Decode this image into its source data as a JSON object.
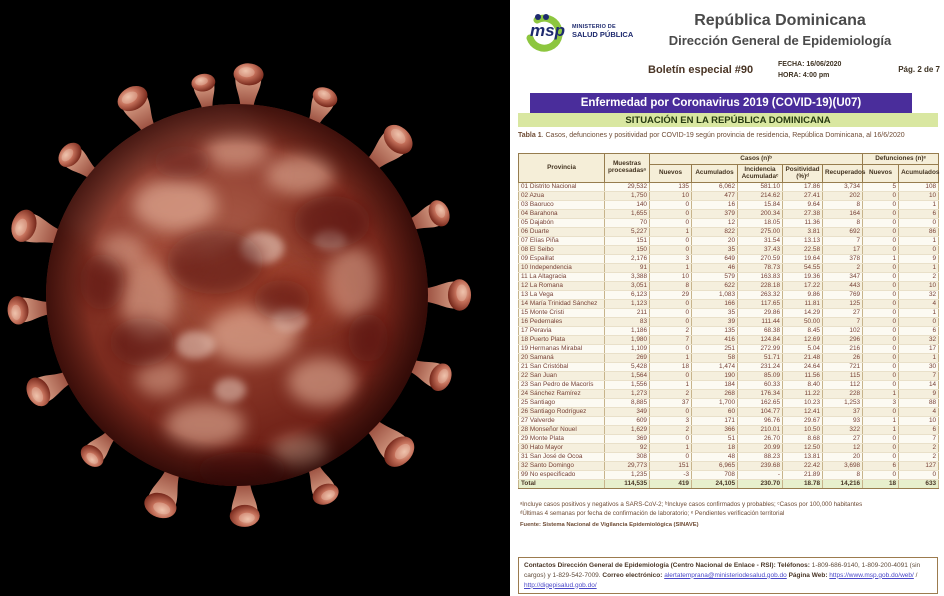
{
  "left_panel": {
    "description": "3D illustration of a SARS-CoV-2 coronavirus particle, mottled red and pink, on black background",
    "background_color": "#000000",
    "virus_body_color": "#8e3a2a",
    "spike_cap_color": "#c4705a"
  },
  "document": {
    "header": {
      "logo_acronym": "msp",
      "logo_line1": "MINISTERIO DE",
      "logo_line2": "SALUD PÚBLICA",
      "title": "República Dominicana",
      "subtitle": "Dirección General de Epidemiología",
      "bulletin": "Boletín especial #90",
      "fecha": "FECHA: 16/06/2020",
      "hora": "HORA: 4:00 pm",
      "page": "Pág. 2 de 7"
    },
    "banners": {
      "purple": "Enfermedad por Coronavirus 2019 (COVID-19)(U07)",
      "green": "SITUACIÓN EN LA REPÚBLICA DOMINICANA"
    },
    "table": {
      "caption_bold": "Tabla 1",
      "caption_rest": ". Casos, defunciones y positividad por COVID-19 según provincia de residencia, República Dominicana, al 16/6/2020",
      "group_provincia": "Provincia",
      "group_muestras": "Muestras procesadasᵃ",
      "group_casos": "Casos (n)ᵇ",
      "group_defunciones": "Defunciones (n)ᵉ",
      "sub_headers": [
        "Nuevos",
        "Acumulados",
        "Incidencia Acumuladaᶜ",
        "Positividad (%)ᵈ",
        "Recuperados",
        "Nuevos",
        "Acumulados"
      ],
      "rows": [
        [
          "01 Distrito Nacional",
          "29,532",
          "135",
          "6,062",
          "581.10",
          "17.86",
          "3,734",
          "5",
          "108"
        ],
        [
          "02 Azua",
          "1,750",
          "10",
          "477",
          "214.62",
          "27.41",
          "202",
          "0",
          "10"
        ],
        [
          "03 Baoruco",
          "140",
          "0",
          "16",
          "15.84",
          "9.64",
          "8",
          "0",
          "1"
        ],
        [
          "04 Barahona",
          "1,655",
          "0",
          "379",
          "200.34",
          "27.38",
          "164",
          "0",
          "6"
        ],
        [
          "05 Dajabón",
          "70",
          "0",
          "12",
          "18.05",
          "11.36",
          "8",
          "0",
          "0"
        ],
        [
          "06 Duarte",
          "5,227",
          "1",
          "822",
          "275.00",
          "3.81",
          "692",
          "0",
          "86"
        ],
        [
          "07 Elías Piña",
          "151",
          "0",
          "20",
          "31.54",
          "13.13",
          "7",
          "0",
          "1"
        ],
        [
          "08 El Seibo",
          "150",
          "0",
          "35",
          "37.43",
          "22.58",
          "17",
          "0",
          "0"
        ],
        [
          "09 Espaillat",
          "2,176",
          "3",
          "649",
          "270.59",
          "19.64",
          "378",
          "1",
          "9"
        ],
        [
          "10 Independencia",
          "91",
          "1",
          "46",
          "78.73",
          "54.55",
          "2",
          "0",
          "1"
        ],
        [
          "11 La Altagracia",
          "3,388",
          "10",
          "579",
          "163.83",
          "19.36",
          "347",
          "0",
          "2"
        ],
        [
          "12 La Romana",
          "3,051",
          "8",
          "622",
          "228.18",
          "17.22",
          "443",
          "0",
          "10"
        ],
        [
          "13 La Vega",
          "6,123",
          "29",
          "1,083",
          "263.32",
          "9.86",
          "769",
          "0",
          "32"
        ],
        [
          "14 María Trinidad Sánchez",
          "1,123",
          "0",
          "166",
          "117.65",
          "11.81",
          "125",
          "0",
          "4"
        ],
        [
          "15 Monte Cristi",
          "211",
          "0",
          "35",
          "29.86",
          "14.29",
          "27",
          "0",
          "1"
        ],
        [
          "16 Pedernales",
          "83",
          "0",
          "39",
          "111.44",
          "50.00",
          "7",
          "0",
          "0"
        ],
        [
          "17 Peravia",
          "1,186",
          "2",
          "135",
          "68.38",
          "8.45",
          "102",
          "0",
          "6"
        ],
        [
          "18 Puerto Plata",
          "1,980",
          "7",
          "416",
          "124.84",
          "12.69",
          "296",
          "0",
          "32"
        ],
        [
          "19 Hermanas Mirabal",
          "1,109",
          "0",
          "251",
          "272.99",
          "5.04",
          "216",
          "0",
          "17"
        ],
        [
          "20 Samaná",
          "269",
          "1",
          "58",
          "51.71",
          "21.48",
          "26",
          "0",
          "1"
        ],
        [
          "21 San Cristóbal",
          "5,428",
          "18",
          "1,474",
          "231.24",
          "24.64",
          "721",
          "0",
          "30"
        ],
        [
          "22 San Juan",
          "1,564",
          "0",
          "190",
          "85.09",
          "11.56",
          "115",
          "0",
          "7"
        ],
        [
          "23 San Pedro de Macorís",
          "1,556",
          "1",
          "184",
          "60.33",
          "8.40",
          "112",
          "0",
          "14"
        ],
        [
          "24 Sánchez Ramírez",
          "1,273",
          "2",
          "268",
          "176.34",
          "11.22",
          "228",
          "1",
          "9"
        ],
        [
          "25 Santiago",
          "8,885",
          "37",
          "1,700",
          "162.65",
          "10.23",
          "1,253",
          "3",
          "88"
        ],
        [
          "26 Santiago Rodríguez",
          "349",
          "0",
          "60",
          "104.77",
          "12.41",
          "37",
          "0",
          "4"
        ],
        [
          "27 Valverde",
          "609",
          "3",
          "171",
          "96.76",
          "29.67",
          "93",
          "1",
          "10"
        ],
        [
          "28 Monseñor Nouel",
          "1,629",
          "2",
          "366",
          "210.01",
          "10.50",
          "322",
          "1",
          "6"
        ],
        [
          "29 Monte Plata",
          "369",
          "0",
          "51",
          "26.70",
          "8.68",
          "27",
          "0",
          "7"
        ],
        [
          "30 Hato Mayor",
          "92",
          "1",
          "18",
          "20.99",
          "12.50",
          "12",
          "0",
          "2"
        ],
        [
          "31 San José de Ocoa",
          "308",
          "0",
          "48",
          "88.23",
          "13.81",
          "20",
          "0",
          "2"
        ],
        [
          "32 Santo Domingo",
          "29,773",
          "151",
          "6,965",
          "239.68",
          "22.42",
          "3,698",
          "6",
          "127"
        ],
        [
          "99 No especificado",
          "1,235",
          "-3",
          "708",
          "-",
          "21.89",
          "8",
          "0",
          "0"
        ]
      ],
      "total_row": [
        "Total",
        "114,535",
        "419",
        "24,105",
        "230.70",
        "18.78",
        "14,216",
        "18",
        "633"
      ]
    },
    "footnotes": [
      "ᵃIncluye casos positivos y negativos a SARS-CoV-2; ᵇIncluye casos confirmados y probables; ᶜCasos por 100,000 habitantes",
      "ᵈÚltimas 4 semanas por fecha de confirmación de laboratorio; ᵉ Pendientes verificación territorial",
      "Fuente: Sistema Nacional de Vigilancia Epidemiológica (SINAVE)"
    ],
    "footer": {
      "parts": [
        {
          "t": "Contactos Dirección General de Epidemiología (Centro Nacional de Enlace - RSI): Teléfonos:",
          "s": "b"
        },
        {
          "t": " 1-809-686-9140, 1-809-200-4091 (sin cargos) y 1-829-542-7009. ",
          "s": "p"
        },
        {
          "t": "Correo electrónico:",
          "s": "b"
        },
        {
          "t": " ",
          "s": "p"
        },
        {
          "t": "alertatemprana@ministeriodesalud.gob.do",
          "s": "l"
        },
        {
          "t": " ",
          "s": "p"
        },
        {
          "t": "Página Web:",
          "s": "b"
        },
        {
          "t": " ",
          "s": "p"
        },
        {
          "t": "https://www.msp.gob.do/web/",
          "s": "l"
        },
        {
          "t": " / ",
          "s": "p"
        },
        {
          "t": "http://digepisalud.gob.do/",
          "s": "l"
        }
      ]
    }
  },
  "colors": {
    "banner_purple": "#4a2d9b",
    "banner_green": "#d9e7a1",
    "table_header_bg": "#f5eed8",
    "table_total_bg": "#e7efcc",
    "table_text": "#774136",
    "logo_navy": "#1e2a6e",
    "logo_green": "#8dc63f",
    "link_blue": "#4a48c8"
  }
}
